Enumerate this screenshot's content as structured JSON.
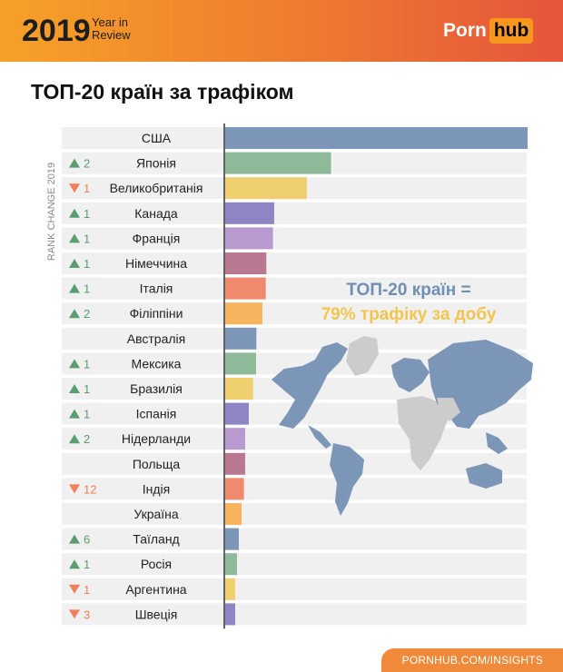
{
  "header": {
    "year": "2019",
    "subtitle_line1": "Year in",
    "subtitle_line2": "Review",
    "logo_part1": "Porn",
    "logo_part2": "hub"
  },
  "overlay": {
    "line1": "ТОП-20 країн =",
    "line2": "79% трафіку за добу"
  },
  "footer": {
    "text": "PORNHUB.COM/INSIGHTS"
  },
  "colors": {
    "up": "#5a9e6f",
    "down": "#f0805c",
    "row_bg": "#f0f0f0",
    "axis": "#333333",
    "map": "#7b96b6"
  },
  "chart_data": {
    "type": "bar",
    "title": "ТОП-20 країн за трафіком",
    "rank_change_label": "RANK CHANGE 2019",
    "xlim": [
      0,
      100
    ],
    "categories": [
      "США",
      "Японія",
      "Великобританія",
      "Канада",
      "Франція",
      "Німеччина",
      "Італія",
      "Філіппіни",
      "Австралія",
      "Мексика",
      "Бразилія",
      "Іспанія",
      "Нідерланди",
      "Польща",
      "Індія",
      "Україна",
      "Таїланд",
      "Росія",
      "Аргентина",
      "Швеція"
    ],
    "values": [
      100,
      35,
      27,
      16.2,
      15.8,
      13.6,
      13.4,
      12.3,
      10.3,
      10.2,
      9.2,
      7.8,
      6.6,
      6.6,
      6.2,
      5.4,
      4.5,
      3.9,
      3.3,
      3.3
    ],
    "rank_change": [
      {
        "dir": "",
        "value": ""
      },
      {
        "dir": "up",
        "value": "2"
      },
      {
        "dir": "down",
        "value": "1"
      },
      {
        "dir": "up",
        "value": "1"
      },
      {
        "dir": "up",
        "value": "1"
      },
      {
        "dir": "up",
        "value": "1"
      },
      {
        "dir": "up",
        "value": "1"
      },
      {
        "dir": "up",
        "value": "2"
      },
      {
        "dir": "",
        "value": ""
      },
      {
        "dir": "up",
        "value": "1"
      },
      {
        "dir": "up",
        "value": "1"
      },
      {
        "dir": "up",
        "value": "1"
      },
      {
        "dir": "up",
        "value": "2"
      },
      {
        "dir": "",
        "value": ""
      },
      {
        "dir": "down",
        "value": "12"
      },
      {
        "dir": "",
        "value": ""
      },
      {
        "dir": "up",
        "value": "6"
      },
      {
        "dir": "up",
        "value": "1"
      },
      {
        "dir": "down",
        "value": "1"
      },
      {
        "dir": "down",
        "value": "3"
      }
    ],
    "bar_colors": [
      "#7b96b6",
      "#8fba9a",
      "#f0cf6e",
      "#8f84c4",
      "#b89ad0",
      "#b97891",
      "#ef8a6f",
      "#f8b35e",
      "#7b96b6",
      "#8fba9a",
      "#f0cf6e",
      "#8f84c4",
      "#b89ad0",
      "#b97891",
      "#ef8a6f",
      "#f8b35e",
      "#7b96b6",
      "#8fba9a",
      "#f0cf6e",
      "#8f84c4"
    ]
  }
}
